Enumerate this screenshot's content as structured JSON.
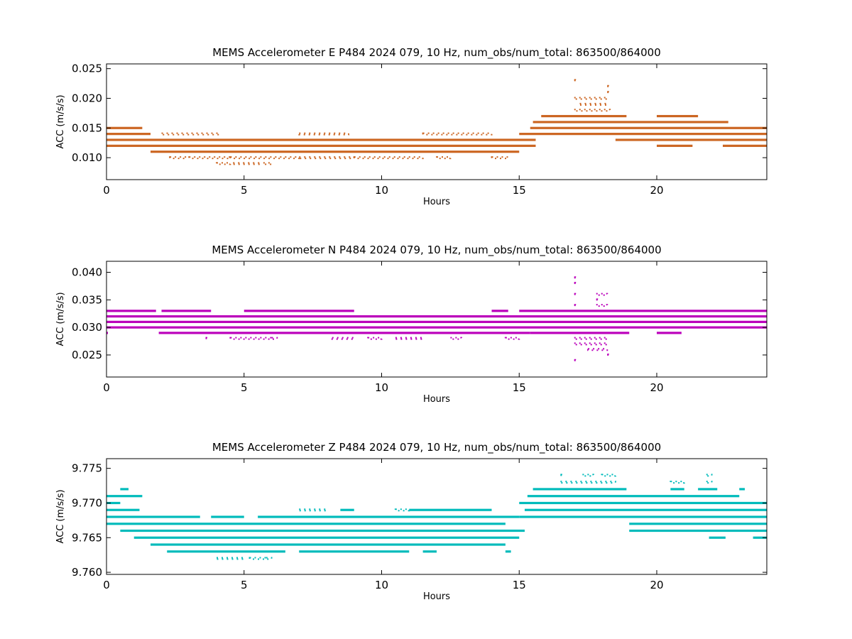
{
  "chart_data": [
    {
      "type": "scatter",
      "title": "MEMS Accelerometer E P484 2024 079, 10 Hz, num_obs/num_total: 863500/864000",
      "xlabel": "Hours",
      "ylabel": "ACC (m/s/s)",
      "xlim": [
        0,
        24
      ],
      "ylim": [
        0.0063,
        0.0258
      ],
      "xticks": [
        0,
        5,
        10,
        15,
        20
      ],
      "xtick_labels": [
        "0",
        "5",
        "10",
        "15",
        "20"
      ],
      "yticks": [
        0.01,
        0.015,
        0.02,
        0.025
      ],
      "ytick_labels": [
        "0.010",
        "0.015",
        "0.020",
        "0.025"
      ],
      "color": "#cc6622",
      "series": [
        {
          "levels": [
            {
              "y": 0.009,
              "x": [
                [
                  4.0,
                  4.5
                ],
                [
                  4.6,
                  5.6
                ],
                [
                  5.7,
                  6.0
                ]
              ],
              "dense": false
            },
            {
              "y": 0.01,
              "x": [
                [
                  2.3,
                  2.9
                ],
                [
                  3.0,
                  4.5
                ],
                [
                  4.5,
                  7.0
                ],
                [
                  7.0,
                  9.0
                ],
                [
                  9.0,
                  11.5
                ],
                [
                  12.0,
                  12.5
                ],
                [
                  14.0,
                  14.6
                ]
              ],
              "dense": false
            },
            {
              "y": 0.011,
              "x": [
                [
                  1.6,
                  15.0
                ]
              ],
              "dense": true
            },
            {
              "y": 0.012,
              "x": [
                [
                  0.0,
                  15.6
                ],
                [
                  20.0,
                  21.3
                ],
                [
                  22.4,
                  24.0
                ]
              ],
              "dense": true
            },
            {
              "y": 0.013,
              "x": [
                [
                  0.0,
                  15.6
                ],
                [
                  18.5,
                  24.0
                ]
              ],
              "dense": true
            },
            {
              "y": 0.014,
              "x": [
                [
                  0.0,
                  1.6
                ],
                [
                  15.0,
                  24.0
                ]
              ],
              "dense": true
            },
            {
              "y": 0.014,
              "x": [
                [
                  2.0,
                  4.1
                ],
                [
                  7.0,
                  8.8
                ],
                [
                  11.5,
                  14.0
                ]
              ],
              "dense": false
            },
            {
              "y": 0.015,
              "x": [
                [
                  0.0,
                  1.3
                ],
                [
                  15.4,
                  24.0
                ]
              ],
              "dense": true
            },
            {
              "y": 0.016,
              "x": [
                [
                  15.5,
                  22.6
                ]
              ],
              "dense": true
            },
            {
              "y": 0.017,
              "x": [
                [
                  15.8,
                  18.9
                ],
                [
                  20.0,
                  21.5
                ]
              ],
              "dense": true
            },
            {
              "y": 0.018,
              "x": [
                [
                  17.0,
                  18.3
                ]
              ],
              "dense": false
            },
            {
              "y": 0.019,
              "x": [
                [
                  17.2,
                  18.2
                ]
              ],
              "dense": false
            },
            {
              "y": 0.02,
              "x": [
                [
                  17.0,
                  18.2
                ]
              ],
              "dense": false
            },
            {
              "y": 0.021,
              "x": [
                [
                  18.2,
                  18.2
                ]
              ],
              "dense": false
            },
            {
              "y": 0.022,
              "x": [
                [
                  18.2,
                  18.2
                ]
              ],
              "dense": false
            },
            {
              "y": 0.023,
              "x": [
                [
                  17.0,
                  17.0
                ]
              ],
              "dense": false
            }
          ]
        }
      ]
    },
    {
      "type": "scatter",
      "title": "MEMS Accelerometer N P484 2024 079, 10 Hz, num_obs/num_total: 863500/864000",
      "xlabel": "Hours",
      "ylabel": "ACC (m/s/s)",
      "xlim": [
        0,
        24
      ],
      "ylim": [
        0.021,
        0.042
      ],
      "xticks": [
        0,
        5,
        10,
        15,
        20
      ],
      "xtick_labels": [
        "0",
        "5",
        "10",
        "15",
        "20"
      ],
      "yticks": [
        0.025,
        0.03,
        0.035,
        0.04
      ],
      "ytick_labels": [
        "0.025",
        "0.030",
        "0.035",
        "0.040"
      ],
      "color": "#bb00bb",
      "series": [
        {
          "levels": [
            {
              "y": 0.024,
              "x": [
                [
                  17.0,
                  17.0
                ]
              ],
              "dense": false
            },
            {
              "y": 0.025,
              "x": [
                [
                  18.2,
                  18.2
                ]
              ],
              "dense": false
            },
            {
              "y": 0.026,
              "x": [
                [
                  17.5,
                  18.2
                ]
              ],
              "dense": false
            },
            {
              "y": 0.027,
              "x": [
                [
                  17.0,
                  18.2
                ]
              ],
              "dense": false
            },
            {
              "y": 0.028,
              "x": [
                [
                  3.6,
                  3.6
                ],
                [
                  4.5,
                  6.0
                ],
                [
                  6.0,
                  6.2
                ],
                [
                  8.2,
                  9.0
                ],
                [
                  9.5,
                  10.0
                ],
                [
                  10.5,
                  11.5
                ],
                [
                  12.5,
                  12.9
                ],
                [
                  14.5,
                  15.0
                ],
                [
                  17.0,
                  18.2
                ]
              ],
              "dense": false
            },
            {
              "y": 0.029,
              "x": [
                [
                  0.0,
                  0.0
                ],
                [
                  1.9,
                  15.4
                ],
                [
                  15.4,
                  19.0
                ],
                [
                  20.0,
                  20.9
                ]
              ],
              "dense": true
            },
            {
              "y": 0.03,
              "x": [
                [
                  0.0,
                  24.0
                ]
              ],
              "dense": true
            },
            {
              "y": 0.031,
              "x": [
                [
                  0.0,
                  24.0
                ]
              ],
              "dense": true
            },
            {
              "y": 0.032,
              "x": [
                [
                  0.0,
                  24.0
                ]
              ],
              "dense": true
            },
            {
              "y": 0.033,
              "x": [
                [
                  0.0,
                  1.8
                ],
                [
                  2.0,
                  3.8
                ],
                [
                  5.0,
                  9.0
                ],
                [
                  14.0,
                  14.6
                ],
                [
                  15.0,
                  24.0
                ]
              ],
              "dense": true
            },
            {
              "y": 0.034,
              "x": [
                [
                  17.0,
                  17.0
                ],
                [
                  17.8,
                  18.2
                ]
              ],
              "dense": false
            },
            {
              "y": 0.035,
              "x": [
                [
                  17.8,
                  17.8
                ]
              ],
              "dense": false
            },
            {
              "y": 0.036,
              "x": [
                [
                  17.0,
                  17.0
                ],
                [
                  17.8,
                  18.2
                ]
              ],
              "dense": false
            },
            {
              "y": 0.038,
              "x": [
                [
                  17.0,
                  17.0
                ]
              ],
              "dense": false
            },
            {
              "y": 0.039,
              "x": [
                [
                  17.0,
                  17.0
                ]
              ],
              "dense": false
            }
          ]
        }
      ]
    },
    {
      "type": "scatter",
      "title": "MEMS Accelerometer Z P484 2024 079, 10 Hz, num_obs/num_total: 863500/864000",
      "xlabel": "Hours",
      "ylabel": "ACC (m/s/s)",
      "xlim": [
        0,
        24
      ],
      "ylim": [
        9.7597,
        9.7764
      ],
      "xticks": [
        0,
        5,
        10,
        15,
        20
      ],
      "xtick_labels": [
        "0",
        "5",
        "10",
        "15",
        "20"
      ],
      "yticks": [
        9.76,
        9.765,
        9.77,
        9.775
      ],
      "ytick_labels": [
        "9.760",
        "9.765",
        "9.770",
        "9.775"
      ],
      "color": "#00bbbb",
      "series": [
        {
          "levels": [
            {
              "y": 9.762,
              "x": [
                [
                  4.0,
                  5.0
                ],
                [
                  5.2,
                  5.8
                ],
                [
                  5.8,
                  6.0
                ]
              ],
              "dense": false
            },
            {
              "y": 9.763,
              "x": [
                [
                  2.2,
                  6.5
                ],
                [
                  7.0,
                  11.0
                ],
                [
                  11.5,
                  12.0
                ],
                [
                  14.5,
                  14.7
                ]
              ],
              "dense": true
            },
            {
              "y": 9.764,
              "x": [
                [
                  1.6,
                  14.5
                ],
                [
                  24.0,
                  24.0
                ]
              ],
              "dense": true
            },
            {
              "y": 9.765,
              "x": [
                [
                  1.0,
                  15.0
                ],
                [
                  21.9,
                  22.5
                ],
                [
                  23.5,
                  24.0
                ]
              ],
              "dense": true
            },
            {
              "y": 9.766,
              "x": [
                [
                  0.5,
                  15.2
                ],
                [
                  19.0,
                  24.0
                ]
              ],
              "dense": true
            },
            {
              "y": 9.767,
              "x": [
                [
                  0.0,
                  14.5
                ],
                [
                  19.0,
                  24.0
                ]
              ],
              "dense": true
            },
            {
              "y": 9.768,
              "x": [
                [
                  0.0,
                  3.4
                ],
                [
                  3.8,
                  5.0
                ],
                [
                  5.5,
                  15.0
                ],
                [
                  15.0,
                  24.0
                ]
              ],
              "dense": true
            },
            {
              "y": 9.769,
              "x": [
                [
                  0.0,
                  1.2
                ],
                [
                  8.5,
                  9.0
                ],
                [
                  11.0,
                  14.0
                ],
                [
                  15.2,
                  24.0
                ]
              ],
              "dense": true
            },
            {
              "y": 9.769,
              "x": [
                [
                  7.0,
                  8.0
                ],
                [
                  10.5,
                  11.0
                ]
              ],
              "dense": false
            },
            {
              "y": 9.77,
              "x": [
                [
                  0.0,
                  0.5
                ],
                [
                  15.0,
                  24.0
                ]
              ],
              "dense": true
            },
            {
              "y": 9.771,
              "x": [
                [
                  0.0,
                  1.3
                ],
                [
                  15.3,
                  23.0
                ]
              ],
              "dense": true
            },
            {
              "y": 9.772,
              "x": [
                [
                  0.5,
                  0.8
                ],
                [
                  15.5,
                  18.9
                ],
                [
                  20.5,
                  21.0
                ],
                [
                  21.5,
                  22.2
                ],
                [
                  23.0,
                  23.2
                ]
              ],
              "dense": true
            },
            {
              "y": 9.773,
              "x": [
                [
                  16.5,
                  18.5
                ],
                [
                  20.5,
                  21.0
                ],
                [
                  21.8,
                  22.0
                ]
              ],
              "dense": false
            },
            {
              "y": 9.774,
              "x": [
                [
                  16.5,
                  16.5
                ],
                [
                  17.3,
                  17.7
                ],
                [
                  18.0,
                  18.5
                ],
                [
                  21.8,
                  22.0
                ]
              ],
              "dense": false
            }
          ]
        }
      ]
    }
  ]
}
